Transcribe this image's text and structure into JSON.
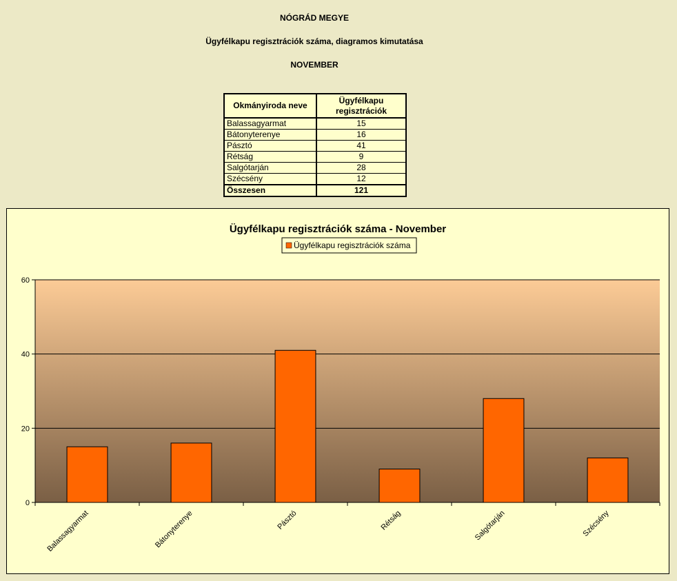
{
  "header": {
    "county": "NÓGRÁD MEGYE",
    "subtitle": "Ügyfélkapu regisztrációk száma, diagramos kimutatása",
    "month": "NOVEMBER"
  },
  "table": {
    "col1": "Okmányiroda neve",
    "col2_line1": "Ügyfélkapu",
    "col2_line2": "regisztrációk",
    "rows": [
      {
        "name": "Balassagyarmat",
        "value": "15"
      },
      {
        "name": "Bátonyterenye",
        "value": "16"
      },
      {
        "name": "Pásztó",
        "value": "41"
      },
      {
        "name": "Rétság",
        "value": "9"
      },
      {
        "name": "Salgótarján",
        "value": "28"
      },
      {
        "name": "Szécsény",
        "value": "12"
      }
    ],
    "total_label": "Összesen",
    "total_value": "121"
  },
  "chart_data": {
    "type": "bar",
    "title": "Ügyfélkapu regisztrációk száma - November",
    "categories": [
      "Balassagyarmat",
      "Bátonyterenye",
      "Pásztó",
      "Rétság",
      "Salgótarján",
      "Szécsény"
    ],
    "series": [
      {
        "name": "Ügyfélkapu regisztrációk száma",
        "values": [
          15,
          16,
          41,
          9,
          28,
          12
        ],
        "color": "#FF6600"
      }
    ],
    "ylim": [
      0,
      60
    ],
    "yticks": [
      0,
      20,
      40,
      60
    ],
    "xlabel": "",
    "ylabel": "",
    "grid": true,
    "legend_position": "top-center",
    "colors": {
      "plot_top": "#FCCB96",
      "plot_bottom": "#7A5F45",
      "bar": "#FF6600",
      "chart_bg": "#FFFFCC"
    }
  }
}
